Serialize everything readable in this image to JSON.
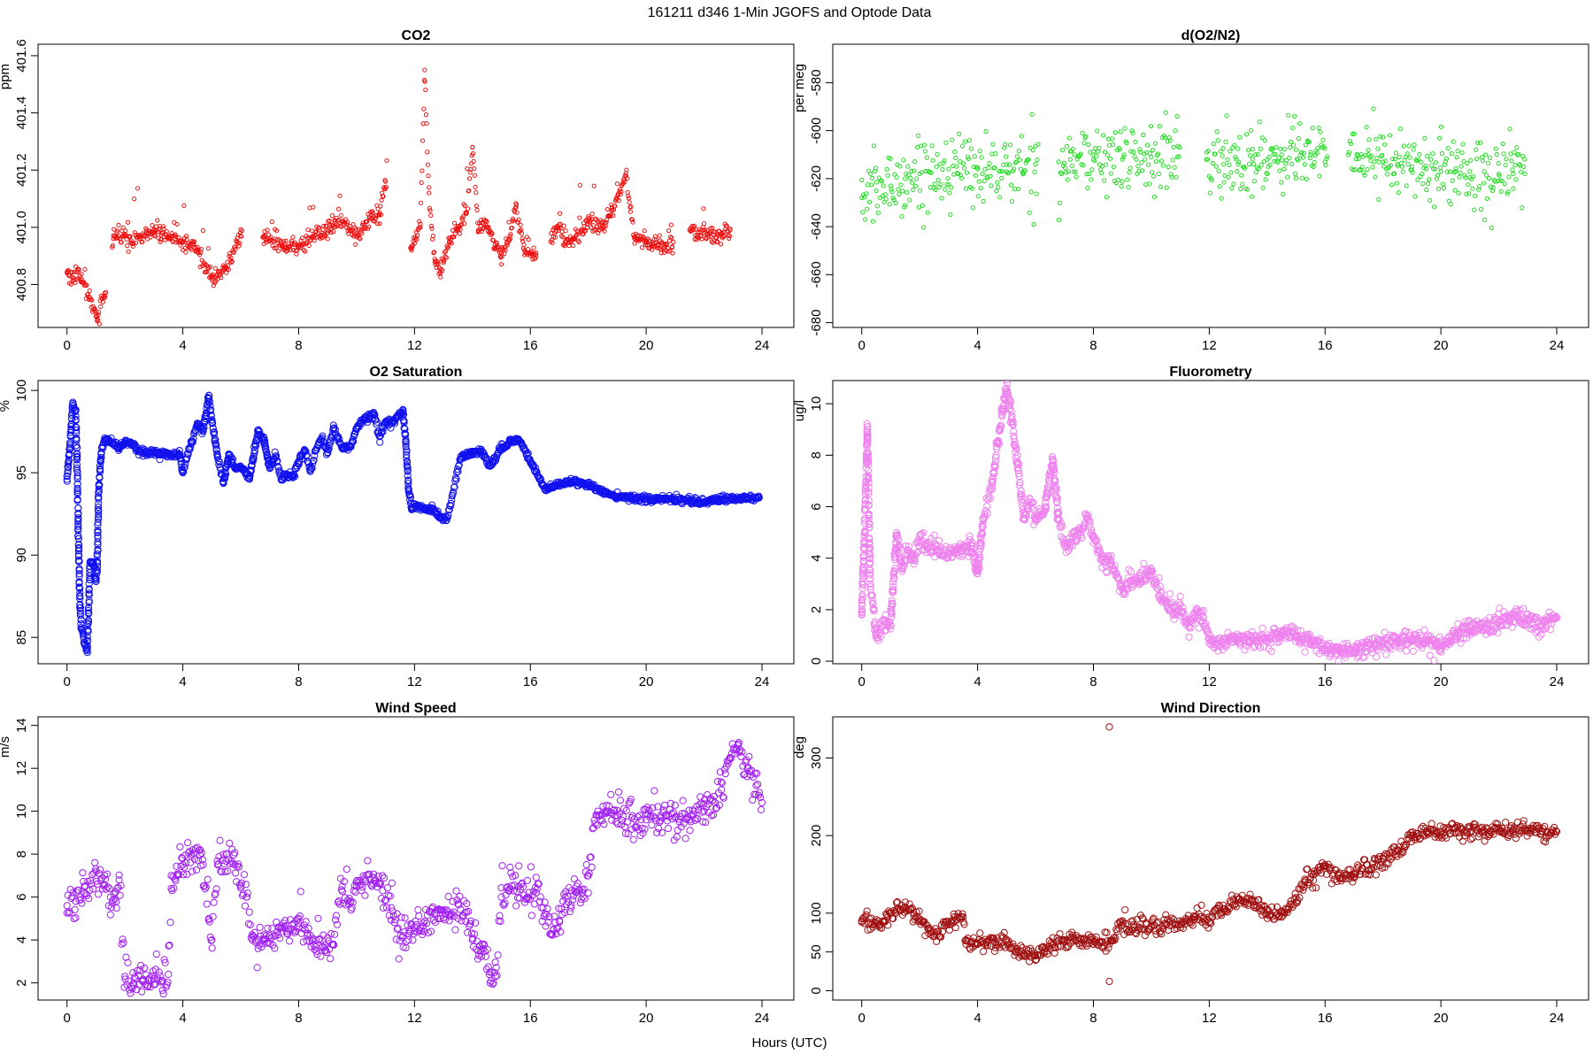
{
  "figure": {
    "suptitle": "161211   d346   1-Min  JGOFS and Optode Data",
    "xlabel": "Hours (UTC)"
  },
  "chart_data": [
    {
      "id": "co2",
      "type": "scatter",
      "title": "CO2",
      "xlabel": "",
      "ylabel": "ppm",
      "color": "#ee1111",
      "marker": "small-open-circle",
      "xlim": [
        -1,
        25.1
      ],
      "ylim": [
        400.65,
        401.64
      ],
      "xticks": [
        0,
        4,
        8,
        12,
        16,
        20,
        24
      ],
      "yticks": [
        400.8,
        401.0,
        401.2,
        401.4,
        401.6
      ],
      "ytick_labels": [
        "400.8",
        "401.0",
        "401.2",
        "401.4",
        "401.6"
      ],
      "gaps": [
        [
          1.35,
          1.55
        ],
        [
          6.05,
          6.75
        ],
        [
          11.05,
          11.85
        ],
        [
          16.2,
          16.7
        ],
        [
          20.95,
          21.5
        ]
      ],
      "series": [
        {
          "x": [
            0,
            0.5,
            1.0,
            1.05,
            1.3,
            1.6,
            2.0,
            2.5,
            3.0,
            3.5,
            4.0,
            4.5,
            5.0,
            5.5,
            6.0,
            6.8,
            7.5,
            8.0,
            8.5,
            9.0,
            9.5,
            10.0,
            10.5,
            10.8,
            11.0,
            11.9,
            12.2,
            12.35,
            12.5,
            12.7,
            12.9,
            13.2,
            13.5,
            13.8,
            14.0,
            14.2,
            14.5,
            14.8,
            15.0,
            15.3,
            15.5,
            15.8,
            16.0,
            16.2,
            16.7,
            17.0,
            17.2,
            17.5,
            17.8,
            18.0,
            18.5,
            18.8,
            19.0,
            19.3,
            19.6,
            20.0,
            20.4,
            20.9,
            21.5,
            22.0,
            22.5,
            22.9
          ],
          "y": [
            400.84,
            400.82,
            400.7,
            400.68,
            400.77,
            400.96,
            400.97,
            400.96,
            400.99,
            400.96,
            400.95,
            400.92,
            400.82,
            400.86,
            400.97,
            400.97,
            400.93,
            400.93,
            400.97,
            400.99,
            401.02,
            400.97,
            401.03,
            401.05,
            401.16,
            400.92,
            401.0,
            401.55,
            401.12,
            400.88,
            400.84,
            400.95,
            400.99,
            401.05,
            401.28,
            400.99,
            401.02,
            400.93,
            400.91,
            400.97,
            401.07,
            400.92,
            400.91,
            400.9,
            400.95,
            401.01,
            400.95,
            400.96,
            400.99,
            401.02,
            401.0,
            401.06,
            401.1,
            401.18,
            400.96,
            400.95,
            400.94,
            400.93,
            400.99,
            400.98,
            400.97,
            400.99
          ]
        }
      ]
    },
    {
      "id": "do2n2",
      "type": "scatter",
      "title": "d(O2/N2)",
      "xlabel": "",
      "ylabel": "per meg",
      "color": "#22dd22",
      "marker": "small-open-circle",
      "xlim": [
        -1,
        25.1
      ],
      "ylim": [
        -682,
        -564
      ],
      "xticks": [
        0,
        4,
        8,
        12,
        16,
        20,
        24
      ],
      "yticks": [
        -680,
        -660,
        -640,
        -620,
        -600,
        -580
      ],
      "ytick_labels": [
        "-680",
        "-660",
        "-640",
        "-620",
        "-600",
        "-580"
      ],
      "gaps": [
        [
          6.1,
          6.8
        ],
        [
          11.0,
          11.9
        ],
        [
          16.1,
          16.8
        ]
      ],
      "series": [
        {
          "x": [
            0,
            0.5,
            1.0,
            1.5,
            2.0,
            3.0,
            4.0,
            5.0,
            6.0,
            6.8,
            7.2,
            8.0,
            9.0,
            10.0,
            10.9,
            11.9,
            12.5,
            13.0,
            13.5,
            14.0,
            14.5,
            15.0,
            15.5,
            16.0,
            16.8,
            17.5,
            18.0,
            18.5,
            19.0,
            19.5,
            20.0,
            20.5,
            21.0,
            21.5,
            22.0,
            22.5,
            22.9
          ],
          "y": [
            -628,
            -625,
            -623,
            -620,
            -618,
            -616,
            -616,
            -617,
            -614,
            -613,
            -612,
            -612,
            -612,
            -611,
            -611,
            -612,
            -614,
            -614,
            -612,
            -612,
            -610,
            -608,
            -610,
            -613,
            -610,
            -610,
            -613,
            -614,
            -615,
            -616,
            -617,
            -617,
            -617,
            -617,
            -618,
            -618,
            -618
          ]
        }
      ]
    },
    {
      "id": "o2sat",
      "type": "scatter",
      "title": "O2 Saturation",
      "xlabel": "",
      "ylabel": "%",
      "color": "#1111ee",
      "marker": "open-circle",
      "xlim": [
        -1,
        25.1
      ],
      "ylim": [
        83.4,
        100.6
      ],
      "xticks": [
        0,
        4,
        8,
        12,
        16,
        20,
        24
      ],
      "yticks": [
        85,
        90,
        95,
        100
      ],
      "ytick_labels": [
        "85",
        "90",
        "95",
        "100"
      ],
      "gaps": [],
      "series": [
        {
          "x": [
            0,
            0.1,
            0.2,
            0.3,
            0.35,
            0.4,
            0.45,
            0.5,
            0.55,
            0.6,
            0.7,
            0.75,
            0.8,
            0.9,
            1.0,
            1.05,
            1.1,
            1.2,
            1.3,
            1.5,
            1.8,
            2.0,
            2.2,
            2.5,
            3.0,
            3.5,
            3.9,
            4.0,
            4.1,
            4.3,
            4.5,
            4.7,
            4.9,
            5.0,
            5.2,
            5.4,
            5.6,
            5.8,
            6.0,
            6.3,
            6.6,
            6.8,
            7.0,
            7.2,
            7.4,
            7.6,
            7.8,
            8.0,
            8.2,
            8.4,
            8.6,
            8.8,
            9.0,
            9.2,
            9.5,
            9.8,
            10.0,
            10.3,
            10.6,
            10.8,
            11.0,
            11.2,
            11.4,
            11.6,
            11.7,
            11.8,
            11.9,
            12.0,
            12.3,
            12.6,
            12.9,
            13.1,
            13.3,
            13.6,
            14.0,
            14.3,
            14.6,
            15.0,
            15.3,
            15.6,
            16.0,
            16.5,
            17.0,
            17.5,
            18.0,
            18.5,
            19.0,
            19.5,
            20.0,
            20.5,
            21.0,
            21.5,
            22.0,
            22.5,
            23.0,
            23.5,
            23.9
          ],
          "y": [
            94.6,
            96.5,
            99.2,
            98.8,
            96.0,
            91.0,
            87.0,
            85.5,
            85.3,
            84.6,
            84.2,
            86.5,
            89.6,
            89.5,
            88.4,
            89.3,
            94.0,
            96.5,
            97.0,
            96.9,
            96.5,
            96.8,
            96.8,
            96.3,
            96.2,
            96.1,
            96.1,
            95.0,
            95.8,
            96.8,
            98.0,
            97.5,
            99.7,
            98.2,
            96.0,
            94.4,
            96.1,
            95.3,
            95.3,
            94.7,
            97.5,
            97.0,
            95.3,
            96.0,
            94.6,
            94.9,
            94.7,
            95.7,
            96.4,
            95.1,
            96.4,
            97.1,
            96.2,
            97.7,
            96.5,
            96.6,
            97.7,
            98.3,
            98.5,
            97.2,
            98.1,
            98.0,
            98.4,
            98.7,
            97.0,
            94.0,
            92.8,
            93.1,
            92.8,
            92.8,
            92.3,
            92.1,
            93.6,
            96.0,
            96.2,
            96.4,
            95.4,
            96.5,
            96.9,
            97.0,
            95.7,
            94.0,
            94.3,
            94.5,
            94.3,
            93.8,
            93.5,
            93.5,
            93.4,
            93.4,
            93.4,
            93.3,
            93.2,
            93.4,
            93.4,
            93.4,
            93.5
          ]
        }
      ]
    },
    {
      "id": "fluor",
      "type": "scatter",
      "title": "Fluorometry",
      "xlabel": "",
      "ylabel": "ug/l",
      "color": "#ee82ee",
      "marker": "open-circle",
      "xlim": [
        -1,
        25.1
      ],
      "ylim": [
        -0.1,
        10.9
      ],
      "xticks": [
        0,
        4,
        8,
        12,
        16,
        20,
        24
      ],
      "yticks": [
        0,
        2,
        4,
        6,
        8,
        10
      ],
      "ytick_labels": [
        "0",
        "2",
        "4",
        "6",
        "8",
        "10"
      ],
      "gaps": [],
      "series": [
        {
          "x": [
            0,
            0.1,
            0.2,
            0.3,
            0.4,
            0.5,
            0.6,
            0.8,
            1.0,
            1.2,
            1.4,
            1.6,
            1.8,
            2.0,
            2.5,
            3.0,
            3.5,
            3.8,
            4.0,
            4.2,
            4.5,
            4.7,
            5.0,
            5.2,
            5.4,
            5.6,
            5.8,
            6.0,
            6.3,
            6.6,
            6.8,
            7.0,
            7.2,
            7.5,
            7.8,
            8.0,
            8.3,
            8.6,
            9.0,
            9.3,
            9.6,
            10.0,
            10.3,
            10.6,
            10.8,
            11.0,
            11.3,
            11.6,
            11.8,
            12.0,
            12.5,
            13.0,
            13.5,
            14.0,
            14.5,
            15.0,
            15.5,
            16.0,
            16.5,
            17.0,
            17.5,
            18.0,
            18.5,
            19.0,
            19.5,
            20.0,
            20.5,
            21.0,
            21.5,
            22.0,
            22.5,
            23.0,
            23.5,
            24.0
          ],
          "y": [
            1.8,
            5.0,
            9.1,
            3.0,
            2.0,
            1.0,
            1.1,
            1.6,
            1.4,
            4.8,
            3.6,
            4.3,
            3.9,
            4.6,
            4.4,
            4.2,
            4.4,
            4.5,
            3.4,
            5.5,
            6.8,
            8.5,
            10.6,
            9.3,
            7.5,
            5.5,
            6.3,
            5.5,
            5.8,
            7.8,
            5.5,
            4.5,
            4.6,
            5.0,
            5.5,
            4.8,
            3.9,
            3.9,
            2.8,
            3.1,
            3.2,
            3.5,
            2.4,
            2.1,
            1.8,
            2.2,
            1.3,
            1.9,
            1.7,
            0.7,
            0.7,
            0.8,
            0.8,
            0.8,
            1.1,
            1.0,
            0.8,
            0.4,
            0.4,
            0.4,
            0.6,
            0.7,
            0.8,
            0.8,
            0.8,
            0.6,
            1.0,
            1.3,
            1.3,
            1.5,
            1.8,
            1.6,
            1.4,
            1.7
          ]
        }
      ]
    },
    {
      "id": "wspd",
      "type": "scatter",
      "title": "Wind Speed",
      "xlabel": "",
      "ylabel": "m/s",
      "color": "#a020f0",
      "marker": "open-circle",
      "xlim": [
        -1,
        25.1
      ],
      "ylim": [
        1.2,
        14.4
      ],
      "xticks": [
        0,
        4,
        8,
        12,
        16,
        20,
        24
      ],
      "yticks": [
        2,
        4,
        6,
        8,
        10,
        12,
        14
      ],
      "ytick_labels": [
        "2",
        "4",
        "6",
        "8",
        "10",
        "12",
        "14"
      ],
      "gaps": [],
      "series": [
        {
          "x": [
            0,
            0.3,
            0.6,
            1.0,
            1.3,
            1.5,
            1.7,
            1.8,
            2.0,
            2.3,
            2.6,
            3.0,
            3.3,
            3.5,
            3.6,
            3.8,
            4.0,
            4.3,
            4.6,
            4.7,
            4.9,
            5.0,
            5.2,
            5.5,
            5.8,
            6.0,
            6.2,
            6.4,
            6.6,
            6.8,
            7.0,
            7.3,
            7.6,
            8.0,
            8.3,
            8.6,
            8.9,
            9.2,
            9.5,
            9.8,
            10.0,
            10.3,
            10.6,
            10.9,
            11.2,
            11.4,
            11.6,
            11.8,
            12.0,
            12.3,
            12.6,
            12.9,
            13.2,
            13.5,
            13.8,
            14.0,
            14.2,
            14.4,
            14.6,
            14.8,
            15.0,
            15.3,
            15.6,
            15.9,
            16.2,
            16.5,
            16.8,
            17.0,
            17.2,
            17.4,
            17.6,
            17.8,
            18.0,
            18.3,
            18.6,
            19.0,
            19.5,
            20.0,
            20.5,
            21.0,
            21.5,
            22.0,
            22.3,
            22.6,
            22.9,
            23.2,
            23.5,
            23.8,
            24.0
          ],
          "y": [
            5.6,
            5.8,
            6.5,
            7.2,
            7.0,
            6.0,
            5.8,
            6.8,
            2.3,
            2.0,
            2.1,
            2.2,
            2.1,
            2.4,
            6.4,
            7.0,
            7.5,
            8.0,
            8.2,
            7.5,
            5.0,
            4.0,
            7.5,
            8.0,
            7.5,
            6.5,
            6.0,
            4.0,
            3.6,
            4.0,
            4.2,
            4.6,
            4.4,
            5.0,
            4.2,
            4.0,
            3.5,
            3.8,
            6.5,
            5.8,
            6.5,
            6.8,
            6.9,
            6.3,
            5.5,
            4.5,
            4.2,
            4.3,
            4.4,
            4.8,
            5.3,
            5.4,
            5.2,
            5.0,
            5.3,
            4.0,
            3.5,
            3.8,
            2.5,
            2.3,
            6.0,
            6.4,
            6.5,
            6.0,
            6.2,
            5.2,
            4.5,
            4.9,
            6.0,
            5.5,
            6.5,
            6.2,
            7.0,
            9.8,
            10.0,
            9.8,
            9.7,
            9.6,
            9.8,
            9.7,
            9.6,
            10.0,
            10.5,
            11.0,
            12.5,
            13.2,
            12.0,
            11.2,
            10.4
          ]
        }
      ]
    },
    {
      "id": "wdir",
      "type": "scatter",
      "title": "Wind Direction",
      "xlabel": "",
      "ylabel": "deg",
      "color": "#a01010",
      "marker": "open-circle",
      "xlim": [
        -1,
        25.1
      ],
      "ylim": [
        -12,
        353
      ],
      "xticks": [
        0,
        4,
        8,
        12,
        16,
        20,
        24
      ],
      "yticks": [
        0,
        50,
        100,
        200,
        300
      ],
      "ytick_labels": [
        "0",
        "50",
        "100",
        "200",
        "300"
      ],
      "gaps": [],
      "outliers": [
        {
          "x": 8.55,
          "y": 340
        },
        {
          "x": 8.55,
          "y": 12
        }
      ],
      "series": [
        {
          "x": [
            0,
            0.3,
            0.6,
            0.9,
            1.2,
            1.5,
            1.8,
            2.0,
            2.3,
            2.6,
            2.9,
            3.2,
            3.5,
            3.6,
            3.8,
            4.0,
            4.3,
            4.6,
            5.0,
            5.3,
            5.6,
            6.0,
            6.3,
            6.6,
            7.0,
            7.3,
            7.6,
            8.0,
            8.3,
            8.6,
            9.0,
            9.5,
            10.0,
            10.5,
            11.0,
            11.5,
            12.0,
            12.5,
            13.0,
            13.5,
            14.0,
            14.5,
            15.0,
            15.3,
            15.6,
            16.0,
            16.5,
            17.0,
            17.5,
            18.0,
            18.5,
            19.0,
            19.5,
            20.0,
            20.5,
            21.0,
            21.5,
            22.0,
            22.5,
            23.0,
            23.5,
            24.0
          ],
          "y": [
            90,
            88,
            85,
            95,
            105,
            108,
            100,
            90,
            80,
            72,
            85,
            90,
            95,
            60,
            62,
            60,
            62,
            62,
            65,
            50,
            48,
            45,
            48,
            60,
            65,
            68,
            62,
            60,
            62,
            65,
            85,
            82,
            82,
            85,
            87,
            95,
            95,
            105,
            118,
            115,
            105,
            95,
            120,
            140,
            150,
            160,
            145,
            150,
            155,
            170,
            180,
            200,
            205,
            205,
            210,
            205,
            205,
            210,
            205,
            205,
            205,
            205
          ]
        }
      ]
    }
  ]
}
